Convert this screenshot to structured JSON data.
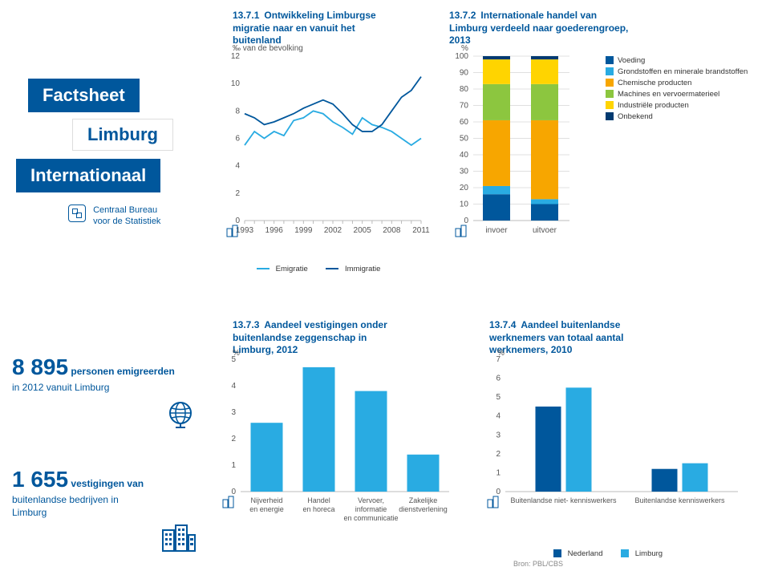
{
  "colors": {
    "primary_blue": "#00579c",
    "light_blue": "#29abe2",
    "orange": "#f7a600",
    "green": "#8cc63f",
    "yellow": "#ffd400",
    "dark_blue": "#003a70",
    "grey": "#888",
    "grid": "#e0e0e0"
  },
  "sidebar": {
    "factsheet": "Factsheet",
    "limburg": "Limburg",
    "internationaal": "Internationaal",
    "cbs_line1": "Centraal Bureau",
    "cbs_line2": "voor de Statistiek"
  },
  "chart1": {
    "num": "13.7.1",
    "title": "Ontwikkeling Limburgse migratie naar en vanuit het buitenland",
    "y_label": "‰ van de bevolking",
    "ylim": [
      0,
      12
    ],
    "ytick_step": 2,
    "x_labels": [
      "1993",
      "1996",
      "1999",
      "2002",
      "2005",
      "2008",
      "2011"
    ],
    "series": {
      "emigratie": {
        "label": "Emigratie",
        "color": "#29abe2",
        "values": [
          5.5,
          6.5,
          6.0,
          6.5,
          6.2,
          7.3,
          7.5,
          8.0,
          7.8,
          7.2,
          6.8,
          6.3,
          7.5,
          7.0,
          6.8,
          6.5,
          6.0,
          5.5,
          6.0
        ]
      },
      "immigratie": {
        "label": "Immigratie",
        "color": "#00579c",
        "values": [
          7.8,
          7.5,
          7.0,
          7.2,
          7.5,
          7.8,
          8.2,
          8.5,
          8.8,
          8.5,
          7.8,
          7.0,
          6.5,
          6.5,
          7.0,
          8.0,
          9.0,
          9.5,
          10.5
        ]
      }
    }
  },
  "chart2": {
    "num": "13.7.2",
    "title": "Internationale handel van Limburg verdeeld naar goederengroep, 2013",
    "y_label": "%",
    "ylim": [
      0,
      100
    ],
    "ytick_step": 10,
    "categories": [
      "invoer",
      "uitvoer"
    ],
    "legend": [
      {
        "label": "Voeding",
        "color": "#00579c"
      },
      {
        "label": "Grondstoffen en minerale brandstoffen",
        "color": "#29abe2"
      },
      {
        "label": "Chemische producten",
        "color": "#f7a600"
      },
      {
        "label": "Machines en vervoermaterieel",
        "color": "#8cc63f"
      },
      {
        "label": "Industriële producten",
        "color": "#ffd400"
      },
      {
        "label": "Onbekend",
        "color": "#003a70"
      }
    ],
    "stacks": {
      "invoer": [
        16,
        5,
        40,
        22,
        15,
        2
      ],
      "uitvoer": [
        10,
        3,
        48,
        22,
        15,
        2
      ]
    }
  },
  "chart3": {
    "num": "13.7.3",
    "title": "Aandeel vestigingen onder buitenlandse zeggenschap in Limburg, 2012",
    "y_label": "%",
    "ylim": [
      0,
      5
    ],
    "ytick_step": 1,
    "categories": [
      "Nijverheid\nen energie",
      "Handel\nen horeca",
      "Vervoer,\ninformatie\nen communicatie",
      "Zakelijke\ndienstverlening"
    ],
    "values": [
      2.6,
      4.7,
      3.8,
      1.4
    ],
    "bar_color": "#29abe2"
  },
  "chart4": {
    "num": "13.7.4",
    "title": "Aandeel buitenlandse werknemers van totaal aantal werknemers, 2010",
    "y_label": "%",
    "ylim": [
      0,
      7
    ],
    "ytick_step": 1,
    "groups": [
      "Buitenlandse niet- kenniswerkers",
      "Buitenlandse kenniswerkers"
    ],
    "series": [
      {
        "label": "Nederland",
        "color": "#00579c",
        "values": [
          4.5,
          1.2
        ]
      },
      {
        "label": "Limburg",
        "color": "#29abe2",
        "values": [
          5.5,
          1.5
        ]
      }
    ],
    "source": "Bron: PBL/CBS"
  },
  "stats": {
    "s1": {
      "num": "8 895",
      "rest": "personen emigreerden",
      "line2": "in 2012 vanuit Limburg"
    },
    "s2": {
      "num": "1 655",
      "rest": "vestigingen van",
      "line2": "buitenlandse bedrijven in",
      "line3": "Limburg"
    }
  }
}
